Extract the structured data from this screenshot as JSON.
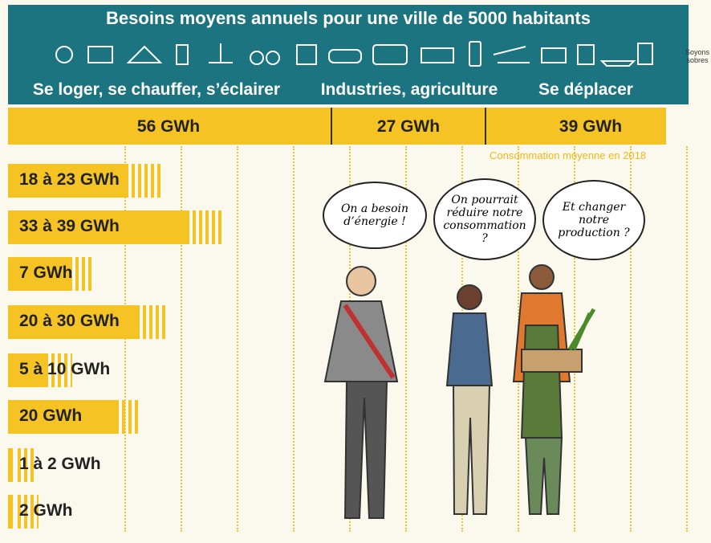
{
  "header": {
    "title": "Besoins moyens annuels pour une ville de 5000 habitants",
    "side_note": "Soyons sobres"
  },
  "sections": [
    {
      "label": "Se loger, se chauffer, s’éclairer",
      "total": "56 GWh"
    },
    {
      "label": "Industries, agriculture",
      "total": "27 GWh"
    },
    {
      "label": "Se déplacer",
      "total": "39 GWh"
    }
  ],
  "note": "Consommation moyenne en 2018",
  "bars": [
    "18 à 23 GWh",
    "33 à 39 GWh",
    "7 GWh",
    "20 à 30 GWh",
    "5 à 10 GWh",
    "20 GWh",
    "1 à 2 GWh",
    "2 GWh"
  ],
  "bubbles": [
    "On a besoin d’énergie !",
    "On pourrait réduire notre consommation ?",
    "Et changer notre production ?"
  ]
}
